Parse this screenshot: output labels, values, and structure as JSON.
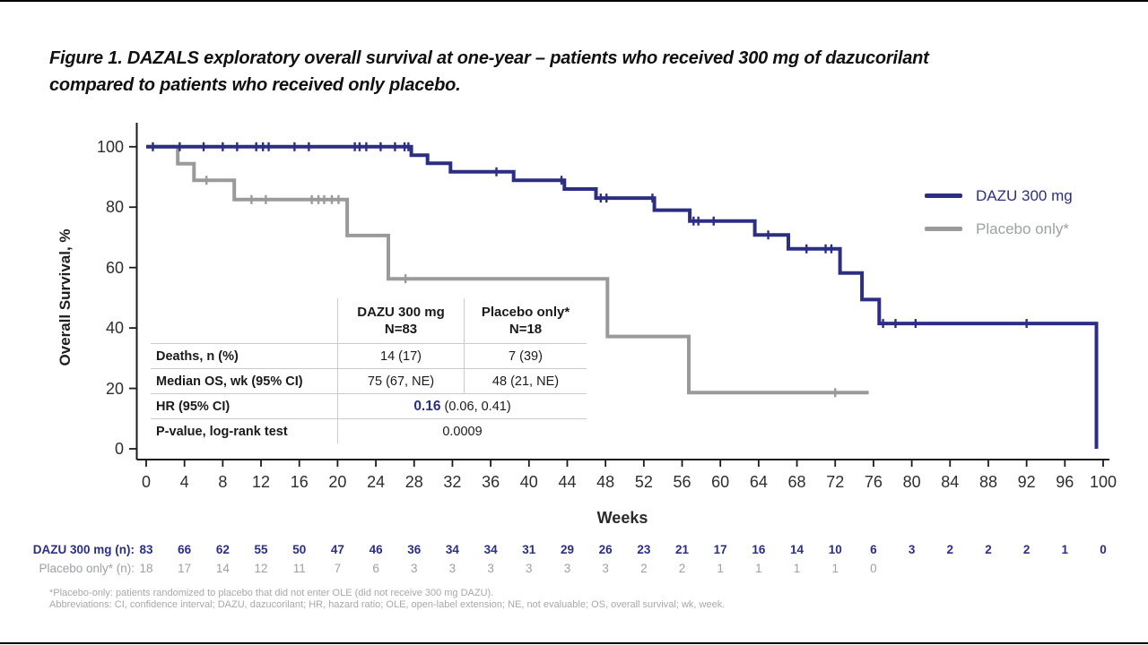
{
  "page": {
    "title_line1": "Figure 1. DAZALS exploratory overall survival at one-year – patients who received 300 mg of dazucorilant",
    "title_line2": "compared to patients who received only placebo."
  },
  "chart_data": {
    "type": "line",
    "subtype": "kaplan-meier-step",
    "xlabel": "Weeks",
    "ylabel": "Overall Survival, %",
    "xlim": [
      0,
      100
    ],
    "ylim": [
      0,
      100
    ],
    "x_ticks": [
      0,
      4,
      8,
      12,
      16,
      20,
      24,
      28,
      32,
      36,
      40,
      44,
      48,
      52,
      56,
      60,
      64,
      68,
      72,
      76,
      80,
      84,
      88,
      92,
      96,
      100
    ],
    "y_ticks": [
      0,
      20,
      40,
      60,
      80,
      100
    ],
    "grid": "off",
    "legend_position": "right",
    "series": [
      {
        "name": "Placebo only*",
        "color": "#9A9A9A",
        "points": [
          [
            0,
            100
          ],
          [
            3.3,
            100
          ],
          [
            3.3,
            94.4
          ],
          [
            5.0,
            94.4
          ],
          [
            5.0,
            88.9
          ],
          [
            9.2,
            88.9
          ],
          [
            9.2,
            82.5
          ],
          [
            21.0,
            82.5
          ],
          [
            21.0,
            70.6
          ],
          [
            25.3,
            70.6
          ],
          [
            25.3,
            56.3
          ],
          [
            48.2,
            56.3
          ],
          [
            48.2,
            37.2
          ],
          [
            56.7,
            37.2
          ],
          [
            56.7,
            18.6
          ],
          [
            75.5,
            18.6
          ]
        ],
        "censor_marks": [
          [
            6.3,
            88.9
          ],
          [
            11,
            82.5
          ],
          [
            12.5,
            82.5
          ],
          [
            17.3,
            82.5
          ],
          [
            18,
            82.5
          ],
          [
            18.6,
            82.5
          ],
          [
            19.4,
            82.5
          ],
          [
            20.1,
            82.5
          ],
          [
            27.1,
            56.3
          ],
          [
            72,
            18.6
          ]
        ]
      },
      {
        "name": "DAZU 300 mg",
        "color": "#2B2E83",
        "points": [
          [
            0,
            100
          ],
          [
            27.7,
            100
          ],
          [
            27.7,
            97.2
          ],
          [
            29.4,
            97.2
          ],
          [
            29.4,
            94.5
          ],
          [
            31.8,
            94.5
          ],
          [
            31.8,
            91.7
          ],
          [
            38.4,
            91.7
          ],
          [
            38.4,
            88.9
          ],
          [
            43.7,
            88.9
          ],
          [
            43.7,
            86.0
          ],
          [
            47.0,
            86.0
          ],
          [
            47.0,
            83.0
          ],
          [
            53.1,
            83.0
          ],
          [
            53.1,
            79.0
          ],
          [
            56.8,
            79.0
          ],
          [
            56.8,
            75.4
          ],
          [
            63.6,
            75.4
          ],
          [
            63.6,
            70.8
          ],
          [
            67.1,
            70.8
          ],
          [
            67.1,
            66.2
          ],
          [
            72.5,
            66.2
          ],
          [
            72.5,
            58.2
          ],
          [
            74.8,
            58.2
          ],
          [
            74.8,
            49.4
          ],
          [
            76.6,
            49.4
          ],
          [
            76.6,
            41.5
          ],
          [
            99.3,
            41.5
          ],
          [
            99.3,
            0
          ]
        ],
        "censor_marks": [
          [
            0.7,
            100
          ],
          [
            3.5,
            100
          ],
          [
            6,
            100
          ],
          [
            8,
            100
          ],
          [
            9.5,
            100
          ],
          [
            11.5,
            100
          ],
          [
            12.2,
            100
          ],
          [
            12.8,
            100
          ],
          [
            15.5,
            100
          ],
          [
            17,
            100
          ],
          [
            21.8,
            100
          ],
          [
            22.3,
            100
          ],
          [
            23,
            100
          ],
          [
            24.5,
            100
          ],
          [
            26,
            100
          ],
          [
            27,
            100
          ],
          [
            27.4,
            100
          ],
          [
            36.6,
            91.7
          ],
          [
            43.4,
            88.9
          ],
          [
            47.5,
            83.0
          ],
          [
            48.1,
            83.0
          ],
          [
            52.9,
            83.0
          ],
          [
            57.2,
            75.4
          ],
          [
            57.7,
            75.4
          ],
          [
            59.3,
            75.4
          ],
          [
            65,
            70.8
          ],
          [
            69,
            66.2
          ],
          [
            71,
            66.2
          ],
          [
            71.6,
            66.2
          ],
          [
            77,
            41.5
          ],
          [
            78.3,
            41.5
          ],
          [
            80.4,
            41.5
          ],
          [
            92,
            41.5
          ]
        ]
      }
    ],
    "risk_table": {
      "weeks": [
        0,
        4,
        8,
        12,
        16,
        20,
        24,
        28,
        32,
        36,
        40,
        44,
        48,
        52,
        56,
        60,
        64,
        68,
        72,
        76,
        80,
        84,
        88,
        92,
        96,
        100
      ],
      "rows": [
        {
          "label": "DAZU 300 mg (n):",
          "color": "#2B2E83",
          "bold": true,
          "values": [
            "83",
            "66",
            "62",
            "55",
            "50",
            "47",
            "46",
            "36",
            "34",
            "34",
            "31",
            "29",
            "26",
            "23",
            "21",
            "17",
            "16",
            "14",
            "10",
            "6",
            "3",
            "2",
            "2",
            "2",
            "1",
            "0"
          ]
        },
        {
          "label": "Placebo only* (n):",
          "color": "#9DA0A4",
          "bold": false,
          "values": [
            "18",
            "17",
            "14",
            "12",
            "11",
            "7",
            "6",
            "3",
            "3",
            "3",
            "3",
            "3",
            "3",
            "2",
            "2",
            "1",
            "1",
            "1",
            "1",
            "0",
            "",
            "",
            "",
            "",
            "",
            ""
          ]
        }
      ]
    }
  },
  "legend": {
    "items": [
      {
        "label": "DAZU 300 mg",
        "color": "#2B2E83"
      },
      {
        "label": "Placebo only*",
        "color": "#9DA0A4",
        "line_color": "#9A9A9A"
      }
    ]
  },
  "stats_table": {
    "col_headers": [
      {
        "line1": "DAZU 300 mg",
        "line2": "N=83",
        "color": "#2B2E83"
      },
      {
        "line1": "Placebo only*",
        "line2": "N=18",
        "color": "#9DA0A4"
      }
    ],
    "rows": {
      "deaths": {
        "label": "Deaths, n (%)",
        "dazu": "14 (17)",
        "placebo": "7 (39)"
      },
      "median": {
        "label": "Median OS, wk (95% CI)",
        "dazu": "75 (67, NE)",
        "placebo": "48 (21, NE)"
      },
      "hr": {
        "label": "HR (95% CI)",
        "value_highlight": "0.16",
        "value_rest": " (0.06, 0.41)"
      },
      "pvalue": {
        "label": "P-value, log-rank test",
        "value": "0.0009"
      }
    }
  },
  "footnotes": {
    "line1": "*Placebo-only: patients randomized to placebo that did not enter OLE (did not receive 300 mg DAZU).",
    "line2": "Abbreviations: CI, confidence interval; DAZU, dazucorilant; HR, hazard ratio; OLE, open-label extension; NE, not evaluable; OS, overall survival; wk, week."
  }
}
